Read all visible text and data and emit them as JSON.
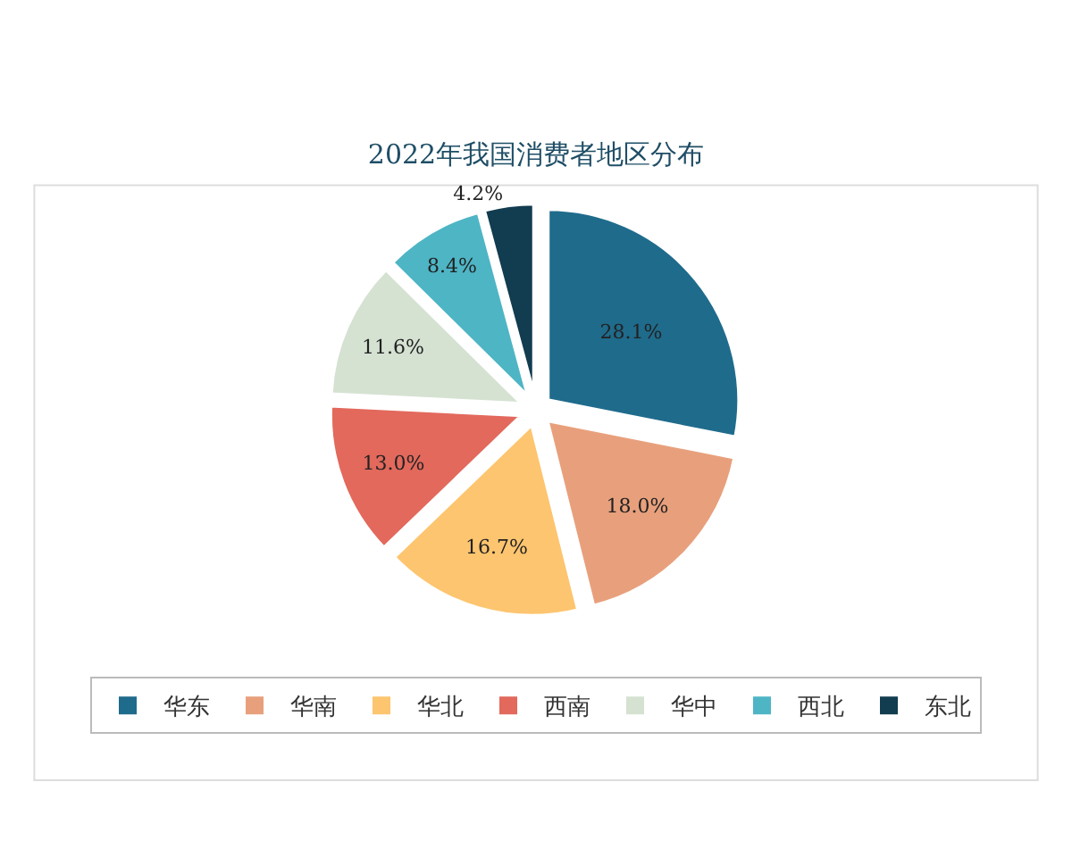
{
  "chart_data": {
    "type": "pie",
    "title": "2022年我国消费者地区分布",
    "categories": [
      "华东",
      "华南",
      "华北",
      "西南",
      "华中",
      "西北",
      "东北"
    ],
    "values": [
      28.1,
      18.0,
      16.7,
      13.0,
      11.6,
      8.4,
      4.2
    ],
    "colors": [
      "#1f6b8c",
      "#e8a07c",
      "#fdc56f",
      "#e2695c",
      "#d5e2d2",
      "#4eb5c5",
      "#123c4f"
    ],
    "value_labels": [
      "28.1%",
      "18.0%",
      "16.7%",
      "13.0%",
      "11.6%",
      "8.4%",
      "4.2%"
    ],
    "legend": "bottom"
  }
}
